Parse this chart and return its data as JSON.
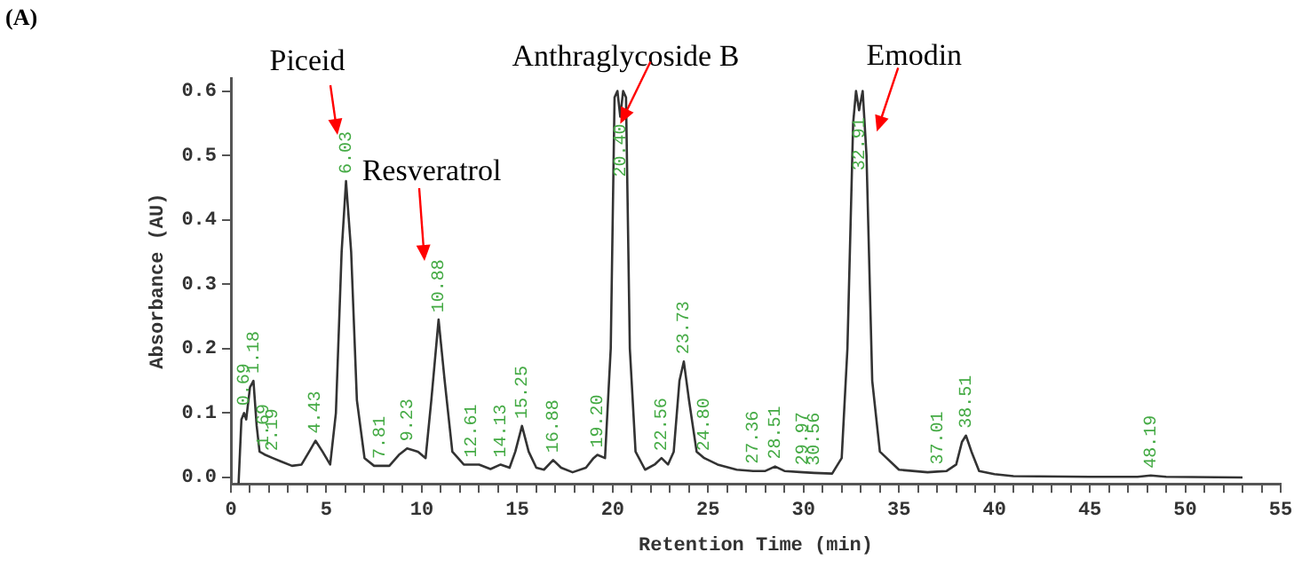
{
  "chart_data": {
    "type": "line",
    "title": "(A)",
    "xlabel": "Retention Time (min)",
    "ylabel": "Absorbance (AU)",
    "x": [
      0.4,
      0.55,
      0.69,
      0.8,
      1.0,
      1.18,
      1.35,
      1.5,
      1.69,
      1.8,
      2.19,
      2.6,
      3.2,
      3.7,
      4.1,
      4.43,
      4.8,
      5.2,
      5.5,
      5.8,
      6.03,
      6.3,
      6.6,
      7.0,
      7.5,
      7.81,
      8.3,
      8.8,
      9.23,
      9.8,
      10.2,
      10.5,
      10.88,
      11.2,
      11.6,
      12.2,
      12.61,
      13.0,
      13.6,
      14.13,
      14.6,
      14.9,
      15.25,
      15.6,
      16.0,
      16.4,
      16.88,
      17.3,
      17.9,
      18.6,
      19.0,
      19.2,
      19.6,
      19.9,
      20.1,
      20.25,
      20.4,
      20.55,
      20.7,
      20.9,
      21.2,
      21.7,
      22.2,
      22.56,
      22.9,
      23.2,
      23.5,
      23.73,
      24.0,
      24.4,
      24.8,
      25.5,
      26.5,
      27.36,
      28.0,
      28.51,
      29.0,
      29.97,
      30.56,
      31.5,
      32.0,
      32.3,
      32.6,
      32.75,
      32.91,
      33.1,
      33.3,
      33.6,
      34.0,
      35.0,
      36.5,
      37.01,
      37.5,
      38.0,
      38.3,
      38.51,
      38.8,
      39.2,
      40,
      41,
      45,
      47.5,
      48.19,
      49,
      53
    ],
    "series": [
      {
        "color": "#333333",
        "values": [
          -0.01,
          0.09,
          0.1,
          0.09,
          0.14,
          0.15,
          0.08,
          0.04,
          0.037,
          0.035,
          0.03,
          0.025,
          0.018,
          0.02,
          0.04,
          0.057,
          0.04,
          0.02,
          0.1,
          0.35,
          0.46,
          0.35,
          0.12,
          0.03,
          0.018,
          0.018,
          0.018,
          0.035,
          0.045,
          0.04,
          0.03,
          0.12,
          0.245,
          0.15,
          0.04,
          0.02,
          0.02,
          0.02,
          0.013,
          0.02,
          0.015,
          0.04,
          0.08,
          0.04,
          0.015,
          0.012,
          0.027,
          0.015,
          0.008,
          0.015,
          0.03,
          0.035,
          0.03,
          0.2,
          0.59,
          0.6,
          0.56,
          0.6,
          0.59,
          0.2,
          0.04,
          0.012,
          0.02,
          0.03,
          0.02,
          0.04,
          0.15,
          0.18,
          0.12,
          0.04,
          0.03,
          0.02,
          0.012,
          0.01,
          0.01,
          0.017,
          0.01,
          0.008,
          0.007,
          0.006,
          0.03,
          0.2,
          0.55,
          0.6,
          0.57,
          0.6,
          0.5,
          0.15,
          0.04,
          0.012,
          0.008,
          0.009,
          0.01,
          0.02,
          0.055,
          0.065,
          0.04,
          0.01,
          0.005,
          0.002,
          0.001,
          0.001,
          0.003,
          0.001,
          0.0
        ]
      }
    ],
    "xlim": [
      0,
      55
    ],
    "ylim": [
      -0.01,
      0.62
    ],
    "xticks": [
      0,
      {
        "value": 1,
        "label": null
      },
      {
        "value": 2,
        "label": null
      },
      {
        "value": 3,
        "label": null
      },
      {
        "value": 4,
        "label": null
      },
      5,
      {
        "value": 6,
        "label": null
      },
      {
        "value": 7,
        "label": null
      },
      {
        "value": 8,
        "label": null
      },
      {
        "value": 9,
        "label": null
      },
      10,
      {
        "value": 11,
        "label": null
      },
      {
        "value": 12,
        "label": null
      },
      {
        "value": 13,
        "label": null
      },
      {
        "value": 14,
        "label": null
      },
      15,
      {
        "value": 16,
        "label": null
      },
      {
        "value": 17,
        "label": null
      },
      {
        "value": 18,
        "label": null
      },
      {
        "value": 19,
        "label": null
      },
      20,
      {
        "value": 21,
        "label": null
      },
      {
        "value": 22,
        "label": null
      },
      {
        "value": 23,
        "label": null
      },
      {
        "value": 24,
        "label": null
      },
      25,
      {
        "value": 26,
        "label": null
      },
      {
        "value": 27,
        "label": null
      },
      {
        "value": 28,
        "label": null
      },
      {
        "value": 29,
        "label": null
      },
      30,
      {
        "value": 31,
        "label": null
      },
      {
        "value": 32,
        "label": null
      },
      {
        "value": 33,
        "label": null
      },
      {
        "value": 34,
        "label": null
      },
      35,
      {
        "value": 36,
        "label": null
      },
      {
        "value": 37,
        "label": null
      },
      {
        "value": 38,
        "label": null
      },
      {
        "value": 39,
        "label": null
      },
      40,
      {
        "value": 41,
        "label": null
      },
      {
        "value": 42,
        "label": null
      },
      {
        "value": 43,
        "label": null
      },
      {
        "value": 44,
        "label": null
      },
      45,
      {
        "value": 46,
        "label": null
      },
      {
        "value": 47,
        "label": null
      },
      {
        "value": 48,
        "label": null
      },
      {
        "value": 49,
        "label": null
      },
      50,
      {
        "value": 51,
        "label": null
      },
      {
        "value": 52,
        "label": null
      },
      {
        "value": 53,
        "label": null
      },
      {
        "value": 54,
        "label": null
      },
      55
    ],
    "yticks": [
      {
        "value": 0,
        "label": "0.0"
      },
      0.1,
      0.2,
      0.3,
      0.4,
      0.5,
      0.6
    ],
    "annotations": [
      "Piceid",
      "Resveratrol",
      {
        "text": "Anthraglycoside B",
        "x": 20.4,
        "y": 0.56
      },
      {
        "text": "Emodin",
        "x": 32.91,
        "y": 0.57
      },
      {
        "text": "0.69",
        "x": 0.69,
        "y": 0.1
      },
      {
        "text": "1.18",
        "x": 1.18,
        "y": 0.15
      },
      {
        "text": "1.69",
        "x": 1.69,
        "y": 0.037
      },
      {
        "text": "2.19",
        "x": 2.19,
        "y": 0.03
      },
      {
        "text": "4.43",
        "x": 4.43,
        "y": 0.057
      },
      {
        "text": "6.03",
        "x": 6.03,
        "y": 0.46
      },
      {
        "text": "7.81",
        "x": 7.81,
        "y": 0.018
      },
      {
        "text": "9.23",
        "x": 9.23,
        "y": 0.045
      },
      {
        "text": "10.88",
        "x": 10.88,
        "y": 0.245
      },
      {
        "text": "12.61",
        "x": 12.61,
        "y": 0.02
      },
      {
        "text": "14.13",
        "x": 14.13,
        "y": 0.02
      },
      {
        "text": "15.25",
        "x": 15.25,
        "y": 0.08
      },
      {
        "text": "16.88",
        "x": 16.88,
        "y": 0.027
      },
      {
        "text": "19.20",
        "x": 19.2,
        "y": 0.035
      },
      {
        "text": "20.40",
        "x": 20.4,
        "y": 0.56
      },
      {
        "text": "22.56",
        "x": 22.56,
        "y": 0.03
      },
      {
        "text": "23.73",
        "x": 23.73,
        "y": 0.18
      },
      {
        "text": "24.80",
        "x": 24.8,
        "y": 0.03
      },
      {
        "text": "27.36",
        "x": 27.36,
        "y": 0.01
      },
      {
        "text": "28.51",
        "x": 28.51,
        "y": 0.017
      },
      {
        "text": "29.97",
        "x": 29.97,
        "y": 0.008
      },
      {
        "text": "30.56",
        "x": 30.56,
        "y": 0.007
      },
      {
        "text": "32.91",
        "x": 32.91,
        "y": 0.57
      },
      {
        "text": "37.01",
        "x": 37.01,
        "y": 0.009
      },
      {
        "text": "38.51",
        "x": 38.51,
        "y": 0.065
      },
      {
        "text": "48.19",
        "x": 48.19,
        "y": 0.003
      }
    ],
    "grid": false,
    "legend": false
  }
}
